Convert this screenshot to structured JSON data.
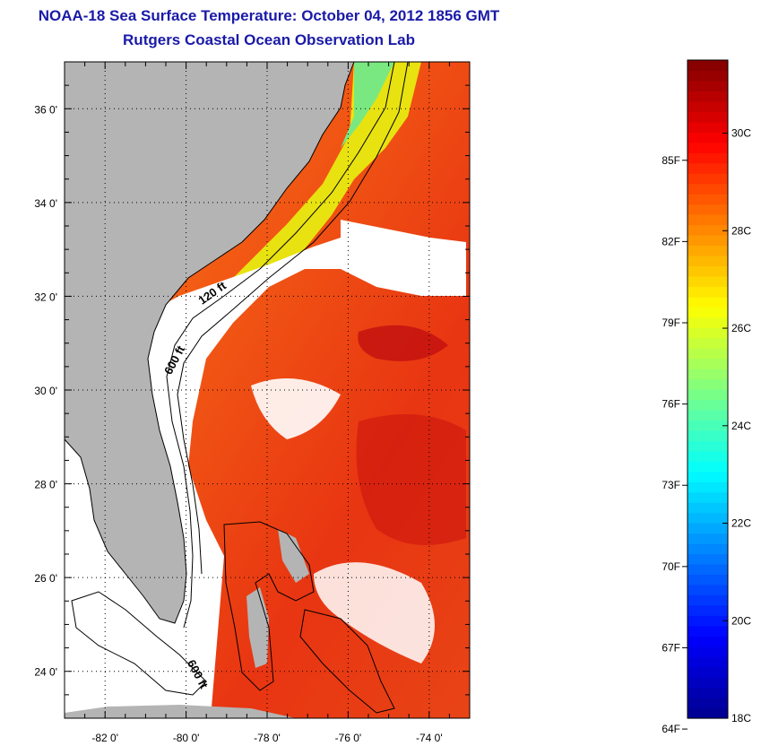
{
  "title": "NOAA-18 Sea Surface Temperature:  October 04, 2012 1856 GMT",
  "subtitle": "Rutgers Coastal Ocean Observation Lab",
  "map": {
    "lat_range": [
      23,
      37
    ],
    "lon_range": [
      -83,
      -73
    ],
    "lat_ticks": [
      {
        "value": 36,
        "label": "36 0'"
      },
      {
        "value": 34,
        "label": "34 0'"
      },
      {
        "value": 32,
        "label": "32 0'"
      },
      {
        "value": 30,
        "label": "30 0'"
      },
      {
        "value": 28,
        "label": "28 0'"
      },
      {
        "value": 26,
        "label": "26 0'"
      },
      {
        "value": 24,
        "label": "24 0'"
      }
    ],
    "lon_ticks": [
      {
        "value": -82,
        "label": "-82 0'"
      },
      {
        "value": -80,
        "label": "-80 0'"
      },
      {
        "value": -78,
        "label": "-78 0'"
      },
      {
        "value": -76,
        "label": "-76 0'"
      },
      {
        "value": -74,
        "label": "-74 0'"
      }
    ],
    "contour_labels": [
      {
        "text": "120 ft",
        "lon": -79.3,
        "lat": 32.0,
        "angle": -35
      },
      {
        "text": "600 ft",
        "lon": -80.2,
        "lat": 30.6,
        "angle": -62
      },
      {
        "text": "600 ft",
        "lon": -79.8,
        "lat": 23.9,
        "angle": 62
      }
    ],
    "colors": {
      "land": "#b4b4b4",
      "clouds": "#ffffff",
      "coastline": "#000000"
    }
  },
  "colorbar": {
    "range_c": [
      18,
      31.5
    ],
    "fahrenheit_ticks": [
      {
        "value": 85,
        "label": "85F"
      },
      {
        "value": 82,
        "label": "82F"
      },
      {
        "value": 79,
        "label": "79F"
      },
      {
        "value": 76,
        "label": "76F"
      },
      {
        "value": 73,
        "label": "73F"
      },
      {
        "value": 70,
        "label": "70F"
      },
      {
        "value": 67,
        "label": "67F"
      },
      {
        "value": 64,
        "label": "64F"
      }
    ],
    "celsius_ticks": [
      {
        "value": 30,
        "label": "30C"
      },
      {
        "value": 28,
        "label": "28C"
      },
      {
        "value": 26,
        "label": "26C"
      },
      {
        "value": 24,
        "label": "24C"
      },
      {
        "value": 22,
        "label": "22C"
      },
      {
        "value": 20,
        "label": "20C"
      },
      {
        "value": 18,
        "label": "18C"
      }
    ],
    "colors": [
      "#00008f",
      "#0000ff",
      "#0080ff",
      "#00ffff",
      "#80ff80",
      "#ffff00",
      "#ff8000",
      "#ff0000",
      "#800000"
    ]
  }
}
